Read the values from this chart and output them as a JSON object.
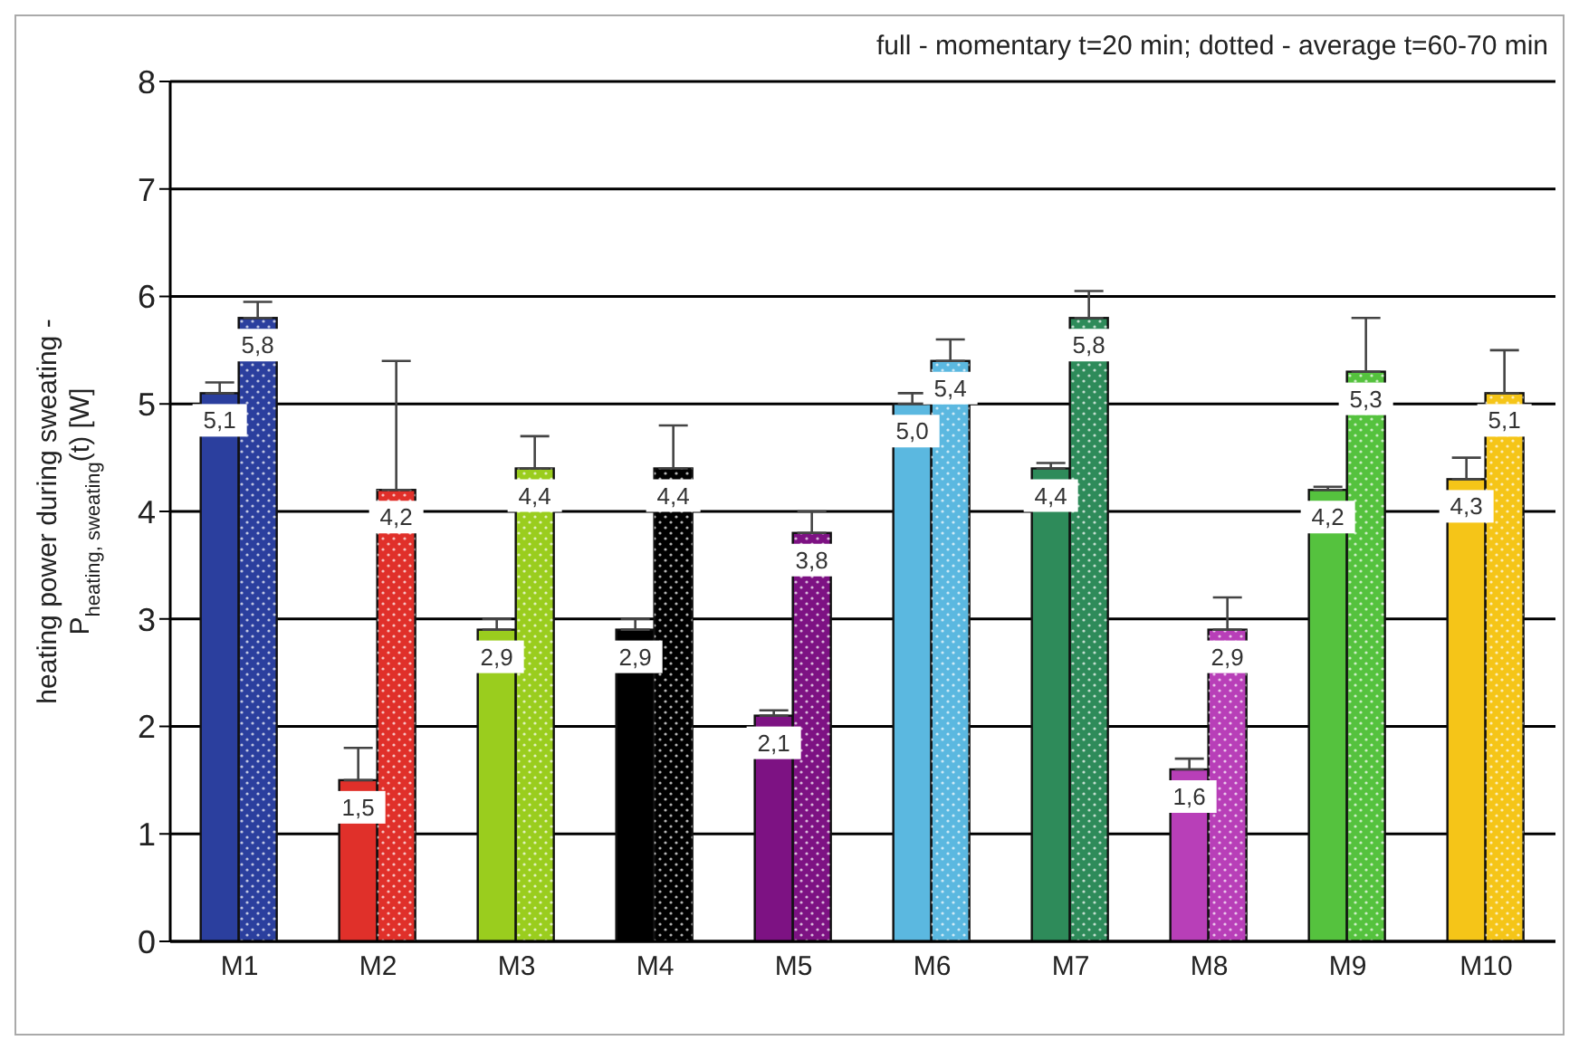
{
  "chart_data": {
    "type": "bar",
    "ylabel": "heating power during sweating - P$_{heating, sweating}$(t) [W]",
    "annotations": [
      "full - momentary t=20 min; dotted - average t=60-70 min"
    ],
    "categories": [
      "M1",
      "M2",
      "M3",
      "M4",
      "M5",
      "M6",
      "M7",
      "M8",
      "M9",
      "M10"
    ],
    "series": [
      {
        "colors": [
          "#2b3f9e",
          "#e0302a",
          "#9acd1e",
          "#000000",
          "#7d1283",
          "#5bb8e0",
          "#2e8b5a",
          "#b83fb8",
          "#55c23e",
          "#f5c518"
        ],
        "values": [
          5.1,
          1.5,
          2.9,
          2.9,
          2.1,
          5.0,
          4.4,
          1.6,
          4.2,
          4.3
        ],
        "value_labels": [
          "5,1",
          "1,5",
          "2,9",
          "2,9",
          "2,1",
          "5,0",
          "4,4",
          "1,6",
          "4,2",
          "4,3"
        ],
        "errors": [
          [
            5.1,
            5.2
          ],
          [
            1.5,
            1.8
          ],
          [
            2.9,
            3.0
          ],
          [
            2.9,
            3.0
          ],
          [
            2.1,
            2.15
          ],
          [
            5.0,
            5.1
          ],
          [
            4.4,
            4.45
          ],
          [
            1.6,
            1.7
          ],
          [
            4.2,
            4.23
          ],
          [
            4.3,
            4.5
          ]
        ]
      },
      {
        "colors": [
          "#2b3f9e",
          "#e0302a",
          "#9acd1e",
          "#000000",
          "#7d1283",
          "#5bb8e0",
          "#2e8b5a",
          "#b83fb8",
          "#55c23e",
          "#f5c518"
        ],
        "values": [
          5.8,
          4.2,
          4.4,
          4.4,
          3.8,
          5.4,
          5.8,
          2.9,
          5.3,
          5.1
        ],
        "value_labels": [
          "5,8",
          "4,2",
          "4,4",
          "4,4",
          "3,8",
          "5,4",
          "5,8",
          "2,9",
          "5,3",
          "5,1"
        ],
        "errors": [
          [
            5.8,
            5.95
          ],
          [
            4.2,
            5.4
          ],
          [
            4.4,
            4.7
          ],
          [
            4.4,
            4.8
          ],
          [
            3.8,
            4.0
          ],
          [
            5.4,
            5.6
          ],
          [
            5.8,
            6.05
          ],
          [
            2.9,
            3.2
          ],
          [
            5.3,
            5.8
          ],
          [
            5.1,
            5.5
          ]
        ]
      }
    ],
    "ylim": [
      0,
      8
    ],
    "yticks": [
      0,
      1,
      2,
      3,
      4,
      5,
      6,
      7,
      8
    ],
    "grid": "y"
  }
}
